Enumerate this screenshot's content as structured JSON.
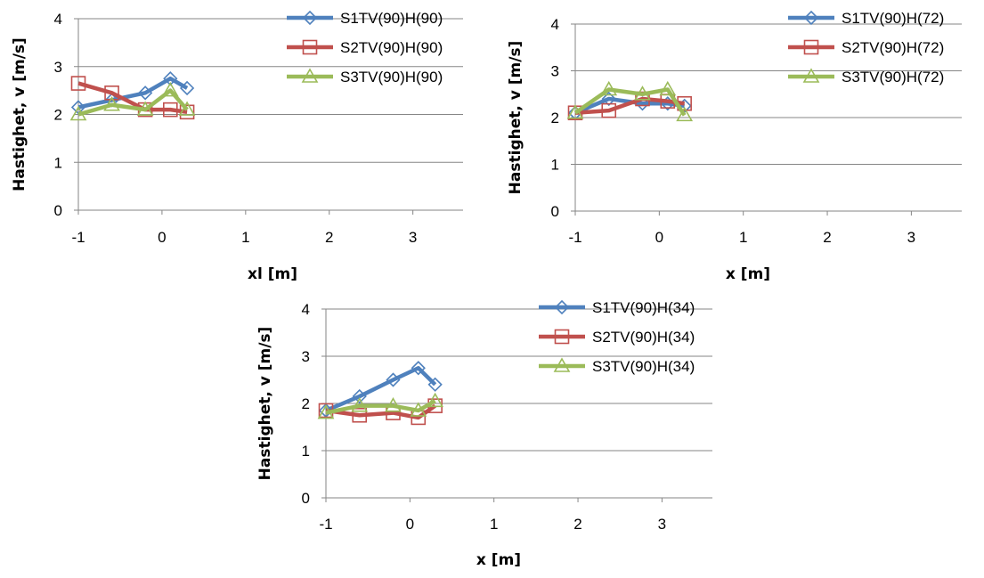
{
  "chart_data": [
    {
      "type": "line",
      "xlabel": "xl [m]",
      "ylabel": "Hastighet, v [m/s]",
      "xlim": [
        -1,
        3.6
      ],
      "ylim": [
        0,
        4
      ],
      "xticks": [
        "-1",
        "0",
        "1",
        "2",
        "3"
      ],
      "yticks": [
        "0",
        "1",
        "2",
        "3",
        "4"
      ],
      "grid": "horizontal",
      "legend": "top-right",
      "series": [
        {
          "name": "S1TV(90)H(90)",
          "color": "#4F81BD",
          "marker": "diamond",
          "x": [
            -1,
            -0.6,
            -0.2,
            0.1,
            0.3
          ],
          "y": [
            2.15,
            2.3,
            2.45,
            2.75,
            2.55
          ]
        },
        {
          "name": "S2TV(90)H(90)",
          "color": "#C0504D",
          "marker": "square",
          "x": [
            -1,
            -0.6,
            -0.2,
            0.1,
            0.3
          ],
          "y": [
            2.65,
            2.45,
            2.1,
            2.1,
            2.05
          ]
        },
        {
          "name": "S3TV(90)H(90)",
          "color": "#9BBB59",
          "marker": "triangle",
          "x": [
            -1,
            -0.6,
            -0.2,
            0.1,
            0.3
          ],
          "y": [
            2.0,
            2.2,
            2.1,
            2.5,
            2.1
          ]
        }
      ]
    },
    {
      "type": "line",
      "xlabel": "x [m]",
      "ylabel": "Hastighet, v [m/s]",
      "xlim": [
        -1,
        3.6
      ],
      "ylim": [
        0,
        4
      ],
      "xticks": [
        "-1",
        "0",
        "1",
        "2",
        "3"
      ],
      "yticks": [
        "0",
        "1",
        "2",
        "3",
        "4"
      ],
      "grid": "horizontal",
      "legend": "top-right",
      "series": [
        {
          "name": "S1TV(90)H(72)",
          "color": "#4F81BD",
          "marker": "diamond",
          "x": [
            -1,
            -0.6,
            -0.2,
            0.1,
            0.3
          ],
          "y": [
            2.1,
            2.4,
            2.3,
            2.3,
            2.25
          ]
        },
        {
          "name": "S2TV(90)H(72)",
          "color": "#C0504D",
          "marker": "square",
          "x": [
            -1,
            -0.6,
            -0.2,
            0.1,
            0.3
          ],
          "y": [
            2.1,
            2.15,
            2.4,
            2.35,
            2.3
          ]
        },
        {
          "name": "S3TV(90)H(72)",
          "color": "#9BBB59",
          "marker": "triangle",
          "x": [
            -1,
            -0.6,
            -0.2,
            0.1,
            0.3
          ],
          "y": [
            2.1,
            2.6,
            2.5,
            2.6,
            2.05
          ]
        }
      ]
    },
    {
      "type": "line",
      "xlabel": "x [m]",
      "ylabel": "Hastighet, v [m/s]",
      "xlim": [
        -1,
        3.6
      ],
      "ylim": [
        0,
        4
      ],
      "xticks": [
        "-1",
        "0",
        "1",
        "2",
        "3"
      ],
      "yticks": [
        "0",
        "1",
        "2",
        "3",
        "4"
      ],
      "grid": "horizontal",
      "legend": "top-right",
      "series": [
        {
          "name": "S1TV(90)H(34)",
          "color": "#4F81BD",
          "marker": "diamond",
          "x": [
            -1,
            -0.6,
            -0.2,
            0.1,
            0.3
          ],
          "y": [
            1.85,
            2.15,
            2.5,
            2.75,
            2.4
          ]
        },
        {
          "name": "S2TV(90)H(34)",
          "color": "#C0504D",
          "marker": "square",
          "x": [
            -1,
            -0.6,
            -0.2,
            0.1,
            0.3
          ],
          "y": [
            1.85,
            1.75,
            1.8,
            1.7,
            1.95
          ]
        },
        {
          "name": "S3TV(90)H(34)",
          "color": "#9BBB59",
          "marker": "triangle",
          "x": [
            -1,
            -0.6,
            -0.2,
            0.1,
            0.3
          ],
          "y": [
            1.8,
            1.95,
            1.95,
            1.85,
            2.05
          ]
        }
      ]
    }
  ]
}
